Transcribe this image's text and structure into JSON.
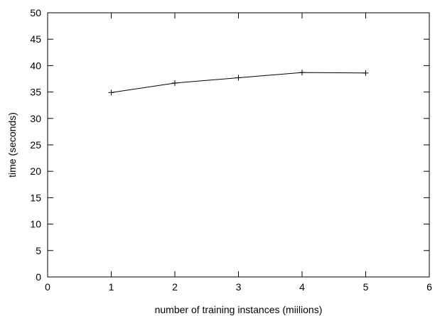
{
  "chart_data": {
    "type": "line",
    "title": "",
    "xlabel": "number of training instances (miilions)",
    "ylabel": "time (seconds)",
    "xlim": [
      0,
      6
    ],
    "ylim": [
      0,
      50
    ],
    "xticks": [
      0,
      1,
      2,
      3,
      4,
      5,
      6
    ],
    "yticks": [
      0,
      5,
      10,
      15,
      20,
      25,
      30,
      35,
      40,
      45,
      50
    ],
    "grid": false,
    "legend": "none",
    "marker": "plus",
    "line_color": "#000000",
    "series": [
      {
        "x": [
          1,
          2,
          3,
          4,
          5
        ],
        "y": [
          34.9,
          36.7,
          37.7,
          38.7,
          38.6
        ]
      }
    ]
  }
}
